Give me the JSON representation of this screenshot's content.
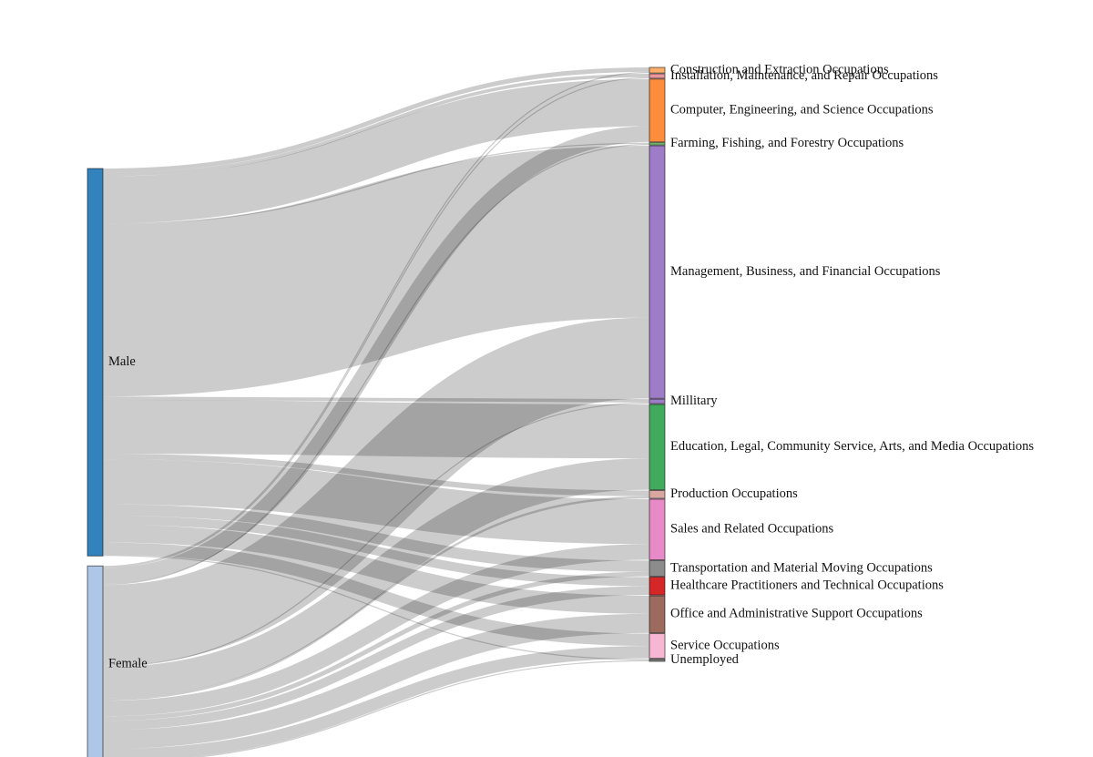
{
  "chart_data": {
    "type": "sankey",
    "sources": [
      {
        "id": "male",
        "label": "Male",
        "color": "#3182bd"
      },
      {
        "id": "female",
        "label": "Female",
        "color": "#aec7e8"
      }
    ],
    "targets": [
      {
        "id": "construction",
        "label": "Construction and Extraction Occupations",
        "color": "#fdae6b"
      },
      {
        "id": "installation",
        "label": "Installation, Maintenance, and Repair Occupations",
        "color": "#e7969c"
      },
      {
        "id": "computer",
        "label": "Computer, Engineering, and Science Occupations",
        "color": "#fd8d3c"
      },
      {
        "id": "farming",
        "label": "Farming, Fishing, and Forestry Occupations",
        "color": "#74c476"
      },
      {
        "id": "management",
        "label": "Management, Business, and Financial Occupations",
        "color": "#9e7cc8"
      },
      {
        "id": "military",
        "label": "Millitary",
        "color": "#9e7cc8"
      },
      {
        "id": "education",
        "label": "Education, Legal, Community Service, Arts, and Media Occupations",
        "color": "#41ab5d"
      },
      {
        "id": "production",
        "label": "Production Occupations",
        "color": "#d8a8a0"
      },
      {
        "id": "sales",
        "label": "Sales and Related Occupations",
        "color": "#e889c8"
      },
      {
        "id": "transportation",
        "label": "Transportation and Material Moving Occupations",
        "color": "#8c8c8c"
      },
      {
        "id": "healthcare",
        "label": "Healthcare Practitioners and Technical Occupations",
        "color": "#d62728"
      },
      {
        "id": "office",
        "label": "Office and Administrative Support Occupations",
        "color": "#9c6b5e"
      },
      {
        "id": "service",
        "label": "Service Occupations",
        "color": "#f7b6d2"
      },
      {
        "id": "unemployed",
        "label": "Unemployed",
        "color": "#7f7f7f"
      }
    ],
    "links": [
      {
        "source": "male",
        "target": "construction",
        "value": 4
      },
      {
        "source": "male",
        "target": "installation",
        "value": 3
      },
      {
        "source": "male",
        "target": "computer",
        "value": 42
      },
      {
        "source": "male",
        "target": "farming",
        "value": 1
      },
      {
        "source": "male",
        "target": "management",
        "value": 153
      },
      {
        "source": "male",
        "target": "military",
        "value": 3
      },
      {
        "source": "male",
        "target": "education",
        "value": 48
      },
      {
        "source": "male",
        "target": "production",
        "value": 5
      },
      {
        "source": "male",
        "target": "sales",
        "value": 40
      },
      {
        "source": "male",
        "target": "transportation",
        "value": 10
      },
      {
        "source": "male",
        "target": "healthcare",
        "value": 8
      },
      {
        "source": "male",
        "target": "office",
        "value": 16
      },
      {
        "source": "male",
        "target": "service",
        "value": 11
      },
      {
        "source": "male",
        "target": "unemployed",
        "value": 1
      },
      {
        "source": "female",
        "target": "construction",
        "value": 1
      },
      {
        "source": "female",
        "target": "installation",
        "value": 1
      },
      {
        "source": "female",
        "target": "computer",
        "value": 14
      },
      {
        "source": "female",
        "target": "farming",
        "value": 1
      },
      {
        "source": "female",
        "target": "management",
        "value": 72
      },
      {
        "source": "female",
        "target": "military",
        "value": 1
      },
      {
        "source": "female",
        "target": "education",
        "value": 28
      },
      {
        "source": "female",
        "target": "production",
        "value": 2
      },
      {
        "source": "female",
        "target": "sales",
        "value": 14
      },
      {
        "source": "female",
        "target": "transportation",
        "value": 4
      },
      {
        "source": "female",
        "target": "healthcare",
        "value": 8
      },
      {
        "source": "female",
        "target": "office",
        "value": 17
      },
      {
        "source": "female",
        "target": "service",
        "value": 11
      },
      {
        "source": "female",
        "target": "unemployed",
        "value": 1
      }
    ]
  }
}
